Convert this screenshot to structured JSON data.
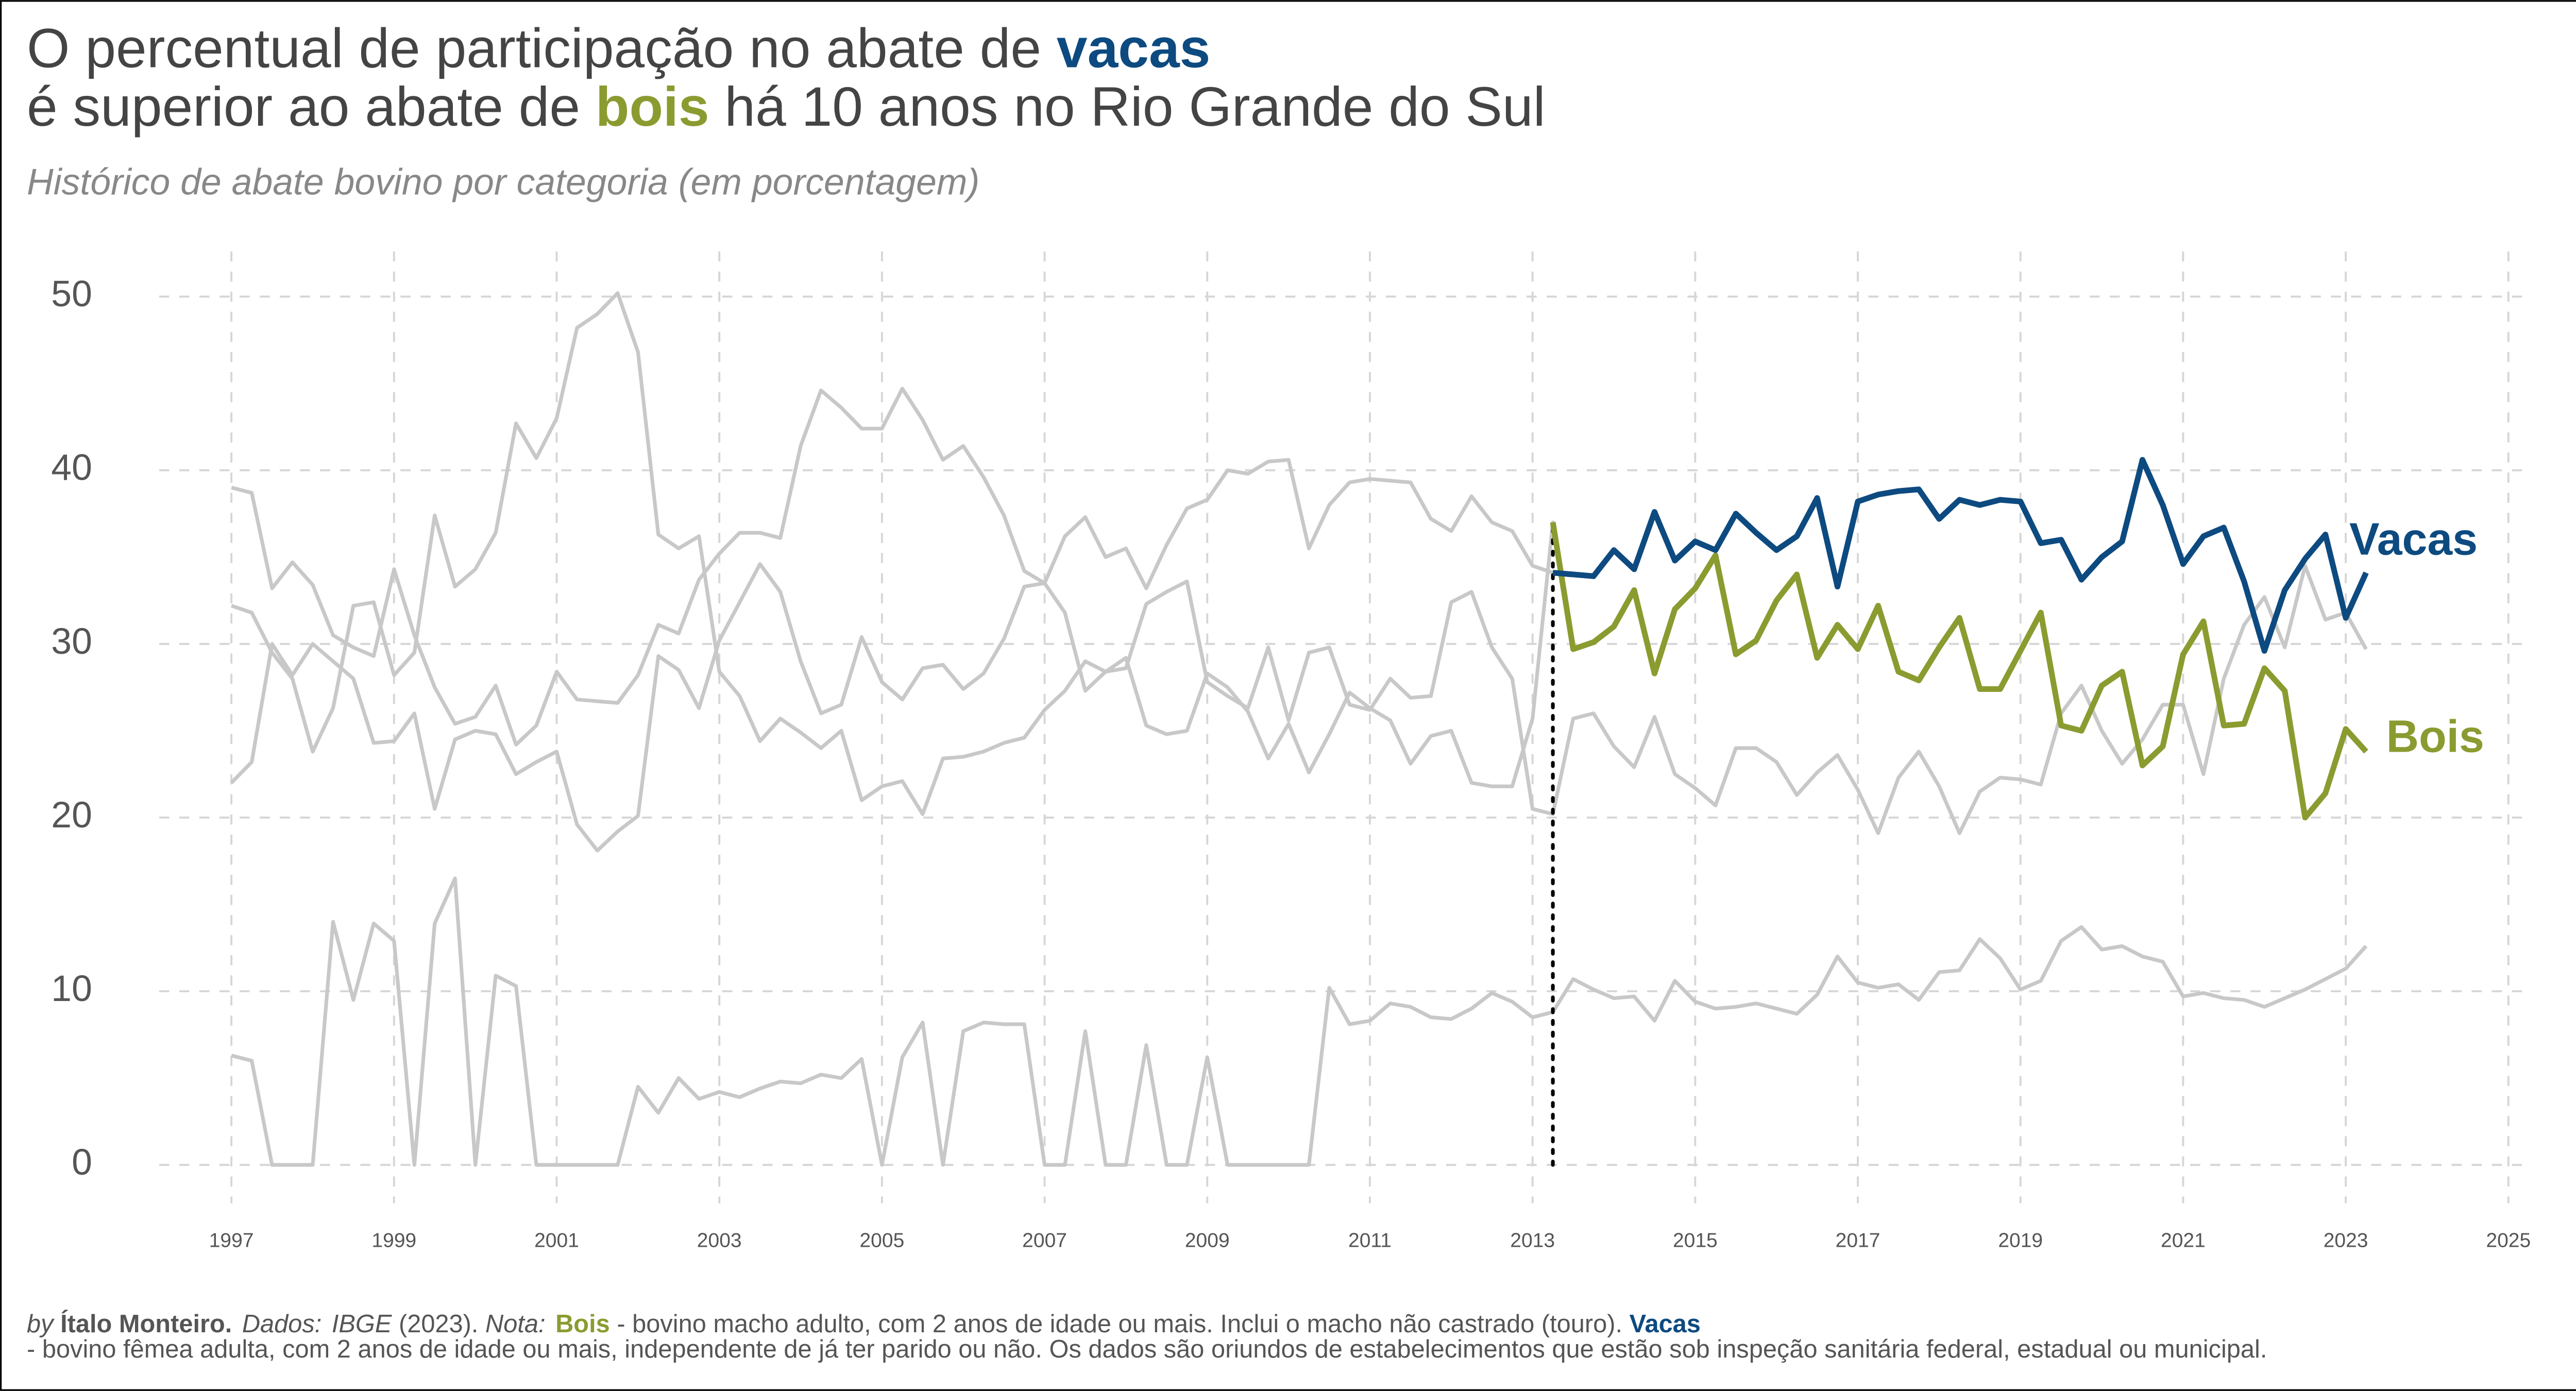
{
  "chart_data": {
    "type": "line",
    "title": [
      [
        "O percentual de participação no abate de ",
        "vacas"
      ],
      [
        "é superior ao abate de ",
        "bois",
        " há 10 anos no Rio Grande do Sul"
      ]
    ],
    "subtitle": "Histórico de abate bovino por categoria (em porcentagem)",
    "caption": [
      [
        "by ",
        "Ítalo Monteiro.",
        "Dados:",
        "IBGE",
        " (2023). ",
        "Nota:",
        "Bois",
        " - bovino macho adulto, com 2 anos de idade ou mais. Inclui o macho não castrado (touro). ",
        "Vacas"
      ],
      [
        "- bovino fêmea adulta, com 2 anos de idade ou mais, independente de já ter parido ou não. Os dados são oriundos de estabelecimentos que estão sob inspeção sanitária federal, estadual ou municipal."
      ]
    ],
    "x": [
      1997,
      1997.25,
      1997.5,
      1997.75,
      1998,
      1998.25,
      1998.5,
      1998.75,
      1999,
      1999.25,
      1999.5,
      1999.75,
      2000,
      2000.25,
      2000.5,
      2000.75,
      2001,
      2001.25,
      2001.5,
      2001.75,
      2002,
      2002.25,
      2002.5,
      2002.75,
      2003,
      2003.25,
      2003.5,
      2003.75,
      2004,
      2004.25,
      2004.5,
      2004.75,
      2005,
      2005.25,
      2005.5,
      2005.75,
      2006,
      2006.25,
      2006.5,
      2006.75,
      2007,
      2007.25,
      2007.5,
      2007.75,
      2008,
      2008.25,
      2008.5,
      2008.75,
      2009,
      2009.25,
      2009.5,
      2009.75,
      2010,
      2010.25,
      2010.5,
      2010.75,
      2011,
      2011.25,
      2011.5,
      2011.75,
      2012,
      2012.25,
      2012.5,
      2012.75,
      2013,
      2013.25,
      2013.5,
      2013.75,
      2014,
      2014.25,
      2014.5,
      2014.75,
      2015,
      2015.25,
      2015.5,
      2015.75,
      2016,
      2016.25,
      2016.5,
      2016.75,
      2017,
      2017.25,
      2017.5,
      2017.75,
      2018,
      2018.25,
      2018.5,
      2018.75,
      2019,
      2019.25,
      2019.5,
      2019.75,
      2020,
      2020.25,
      2020.5,
      2020.75,
      2021,
      2021.25,
      2021.5,
      2021.75,
      2022,
      2022.25,
      2022.5,
      2022.75,
      2023,
      2023.25
    ],
    "series": [
      {
        "values": [
          32.2,
          31.8,
          29.5,
          28.0,
          23.8,
          26.3,
          32.2,
          32.4,
          28.2,
          29.5,
          37.4,
          33.3,
          34.3,
          36.4,
          42.7,
          40.7,
          43.0,
          48.2,
          49.0,
          50.2,
          46.8,
          36.3,
          35.5,
          36.2,
          28.4,
          27.0,
          24.4,
          25.7,
          24.9,
          24.0,
          25.0,
          21.0,
          21.8,
          22.1,
          20.2,
          23.4,
          23.5,
          23.8,
          24.3,
          24.6,
          26.2,
          27.3,
          29.0,
          28.4,
          28.6,
          32.3,
          33.0,
          33.6,
          27.8,
          27.0,
          26.3,
          29.8,
          25.6,
          29.5,
          29.8,
          26.5,
          26.2,
          28.0,
          26.9,
          27.0,
          32.4,
          33.0,
          29.8,
          28.0,
          20.5,
          20.2,
          25.7,
          26.0,
          24.1,
          22.9,
          25.8,
          22.5,
          21.7,
          20.7,
          24.0,
          24.0,
          23.2,
          21.3,
          22.6,
          23.6,
          21.6,
          19.1,
          22.3,
          23.8,
          21.8,
          19.1,
          21.5,
          22.3,
          22.2,
          21.9,
          26.0,
          27.6,
          25.0,
          23.1,
          24.5,
          26.5,
          26.5,
          22.5,
          28.0,
          31.1,
          32.7,
          29.8,
          34.5,
          31.4,
          31.8,
          29.7
        ]
      },
      {
        "values": [
          6.3,
          6.0,
          0,
          0,
          0,
          14.0,
          9.5,
          13.9,
          12.9,
          0,
          13.9,
          16.5,
          0,
          10.9,
          10.3,
          0,
          0,
          0,
          0,
          0,
          4.5,
          3.0,
          5.0,
          3.8,
          4.2,
          3.9,
          4.4,
          4.8,
          4.7,
          5.2,
          5.0,
          6.1,
          0,
          6.2,
          8.2,
          0,
          7.7,
          8.2,
          8.1,
          8.1,
          0,
          0,
          7.7,
          0,
          0,
          6.9,
          0,
          0,
          6.2,
          0,
          0,
          0,
          0,
          0,
          10.2,
          8.1,
          8.3,
          9.3,
          9.1,
          8.5,
          8.4,
          9.0,
          9.9,
          9.4,
          8.5,
          8.8,
          10.7,
          10.1,
          9.6,
          9.7,
          8.3,
          10.6,
          9.4,
          9.0,
          9.1,
          9.3,
          9.0,
          8.7,
          9.8,
          12.0,
          10.5,
          10.2,
          10.4,
          9.5,
          11.1,
          11.2,
          13.0,
          11.9,
          10.1,
          10.6,
          12.9,
          13.7,
          12.4,
          12.6,
          12.0,
          11.7,
          9.7,
          9.9,
          9.6,
          9.5,
          9.1,
          9.6,
          10.1,
          10.7,
          11.3,
          12.6
        ]
      },
      {
        "name": "Bois",
        "color": "#8b9b30",
        "values": [
          39.0,
          38.7,
          33.2,
          34.7,
          33.4,
          30.5,
          29.8,
          29.3,
          34.3,
          30.5,
          27.5,
          25.4,
          25.8,
          27.6,
          24.2,
          25.3,
          28.4,
          26.8,
          26.7,
          26.6,
          28.2,
          31.1,
          30.6,
          33.7,
          35.2,
          36.4,
          36.4,
          36.1,
          41.4,
          44.6,
          43.6,
          42.4,
          42.4,
          44.7,
          42.9,
          40.6,
          41.4,
          39.6,
          37.4,
          34.2,
          33.5,
          31.8,
          27.3,
          28.4,
          29.2,
          25.3,
          24.8,
          25.0,
          28.3,
          27.5,
          26.1,
          23.4,
          25.4,
          22.6,
          24.8,
          27.2,
          26.3,
          25.6,
          23.1,
          24.7,
          25.0,
          22.0,
          21.8,
          21.8,
          25.7,
          37.0,
          29.7,
          30.1,
          31.0,
          33.1,
          28.3,
          32.0,
          33.2,
          35.1,
          29.4,
          30.2,
          32.5,
          34.0,
          29.2,
          31.1,
          29.7,
          32.2,
          28.4,
          27.9,
          29.8,
          31.5,
          27.4,
          27.4,
          29.6,
          31.8,
          25.3,
          25.0,
          27.6,
          28.4,
          23.0,
          24.1,
          29.4,
          31.3,
          25.3,
          25.4,
          28.6,
          27.3,
          20.0,
          21.4,
          25.1,
          23.8
        ]
      },
      {
        "name": "Vacas",
        "color": "#0d4a80",
        "values": [
          22.0,
          23.2,
          30.0,
          28.2,
          30.0,
          29.0,
          28.0,
          24.3,
          24.4,
          26.0,
          20.5,
          24.5,
          25.0,
          24.8,
          22.5,
          23.2,
          23.8,
          19.6,
          18.1,
          19.2,
          20.1,
          29.3,
          28.5,
          26.3,
          30.2,
          32.4,
          34.6,
          33.0,
          29.0,
          26.0,
          26.5,
          30.4,
          27.8,
          26.8,
          28.6,
          28.8,
          27.4,
          28.3,
          30.3,
          33.3,
          33.5,
          36.2,
          37.3,
          35.0,
          35.5,
          33.2,
          35.7,
          37.8,
          38.3,
          40.0,
          39.8,
          40.5,
          40.6,
          35.5,
          38.0,
          39.3,
          39.5,
          39.4,
          39.3,
          37.2,
          36.5,
          38.5,
          37.0,
          36.5,
          34.5,
          34.1,
          34.0,
          33.9,
          35.4,
          34.3,
          37.6,
          34.8,
          35.9,
          35.4,
          37.5,
          36.4,
          35.4,
          36.2,
          38.4,
          33.3,
          38.2,
          38.6,
          38.8,
          38.9,
          37.2,
          38.3,
          38.0,
          38.3,
          38.2,
          35.8,
          36.0,
          33.7,
          35.0,
          35.9,
          40.6,
          38.0,
          34.6,
          36.2,
          36.7,
          33.6,
          29.6,
          33.1,
          34.9,
          36.3,
          31.5,
          34.1
        ]
      }
    ],
    "base_color": "#c8c8c8",
    "highlight_from": 2013.25,
    "xlim": [
      1995.7,
      2026.3
    ],
    "xticks": [
      1997,
      1999,
      2001,
      2003,
      2005,
      2007,
      2009,
      2011,
      2013,
      2015,
      2017,
      2019,
      2021,
      2023,
      2025
    ],
    "ylim": [
      -2.4,
      52.6
    ],
    "yticks": [
      0,
      10,
      20,
      30,
      40,
      50
    ],
    "grid": true
  }
}
